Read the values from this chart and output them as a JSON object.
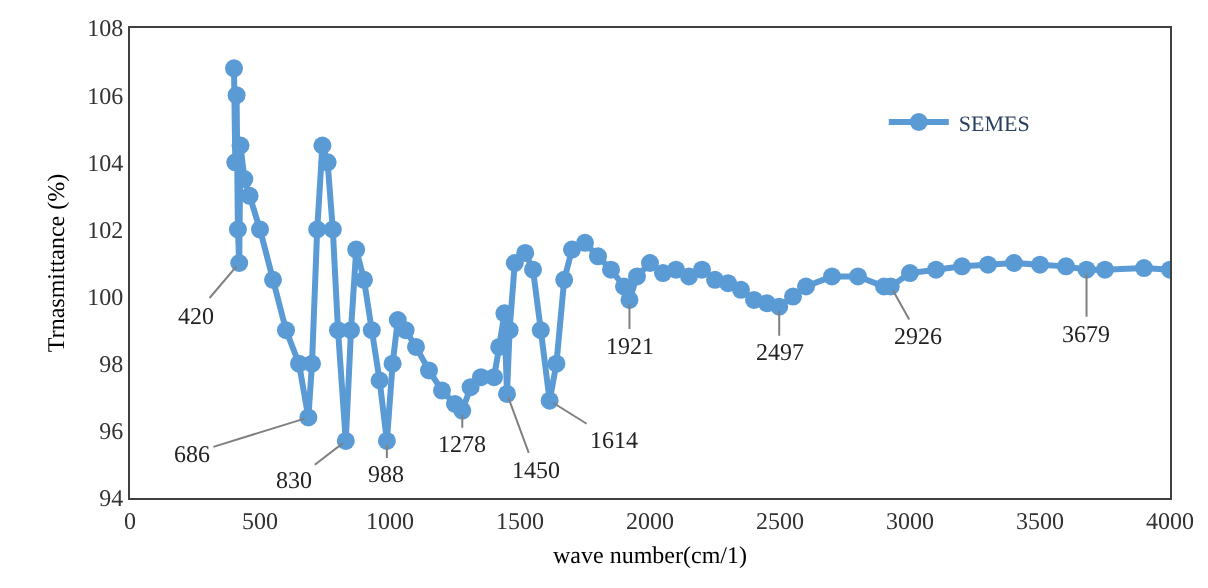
{
  "chart_data": {
    "type": "line",
    "xlabel": "wave number(cm/1)",
    "ylabel": "Trnasmittance (%)",
    "xlim": [
      0,
      4000
    ],
    "xticks": [
      0,
      500,
      1000,
      1500,
      2000,
      2500,
      3000,
      3500,
      4000
    ],
    "ylim": [
      94,
      108
    ],
    "yticks": [
      94,
      96,
      98,
      100,
      102,
      104,
      106,
      108
    ],
    "legend": "top right",
    "marker": "circle",
    "line_style": "solid",
    "x": [
      400,
      405,
      410,
      415,
      420,
      425,
      440,
      460,
      500,
      550,
      600,
      650,
      686,
      700,
      720,
      740,
      760,
      780,
      800,
      830,
      850,
      870,
      900,
      930,
      960,
      988,
      1010,
      1030,
      1060,
      1100,
      1150,
      1200,
      1250,
      1278,
      1310,
      1350,
      1400,
      1420,
      1440,
      1450,
      1460,
      1480,
      1520,
      1550,
      1580,
      1614,
      1640,
      1670,
      1700,
      1750,
      1800,
      1850,
      1900,
      1921,
      1950,
      2000,
      2050,
      2100,
      2150,
      2200,
      2250,
      2300,
      2350,
      2400,
      2450,
      2497,
      2550,
      2600,
      2700,
      2800,
      2900,
      2926,
      3000,
      3100,
      3200,
      3300,
      3400,
      3500,
      3600,
      3679,
      3750,
      3900,
      4000
    ],
    "series": [
      {
        "name": "SEMES",
        "color": "#5b9bd5",
        "values": [
          106.8,
          104,
          106,
          102,
          101,
          104.5,
          103.5,
          103,
          102,
          100.5,
          99,
          98,
          96.4,
          98,
          102,
          104.5,
          104,
          102,
          99,
          95.7,
          99,
          101.4,
          100.5,
          99,
          97.5,
          95.7,
          98,
          99.3,
          99,
          98.5,
          97.8,
          97.2,
          96.8,
          96.6,
          97.3,
          97.6,
          97.6,
          98.5,
          99.5,
          97.1,
          99,
          101,
          101.3,
          100.8,
          99,
          96.9,
          98,
          100.5,
          101.4,
          101.6,
          101.2,
          100.8,
          100.3,
          99.9,
          100.6,
          101,
          100.7,
          100.8,
          100.6,
          100.8,
          100.5,
          100.4,
          100.2,
          99.9,
          99.8,
          99.7,
          100,
          100.3,
          100.6,
          100.6,
          100.3,
          100.3,
          100.7,
          100.8,
          100.9,
          100.95,
          101,
          100.95,
          100.9,
          100.8,
          100.8,
          100.85,
          100.8
        ]
      }
    ],
    "annotations": [
      {
        "text": "420",
        "x": 420,
        "y": 101
      },
      {
        "text": "686",
        "x": 686,
        "y": 96.4
      },
      {
        "text": "830",
        "x": 830,
        "y": 95.7
      },
      {
        "text": "988",
        "x": 988,
        "y": 95.7
      },
      {
        "text": "1278",
        "x": 1278,
        "y": 96.6
      },
      {
        "text": "1450",
        "x": 1450,
        "y": 97.1
      },
      {
        "text": "1614",
        "x": 1614,
        "y": 96.9
      },
      {
        "text": "1921",
        "x": 1921,
        "y": 99.9
      },
      {
        "text": "2497",
        "x": 2497,
        "y": 99.7
      },
      {
        "text": "2926",
        "x": 2926,
        "y": 100.3
      },
      {
        "text": "3679",
        "x": 3679,
        "y": 100.8
      }
    ]
  }
}
